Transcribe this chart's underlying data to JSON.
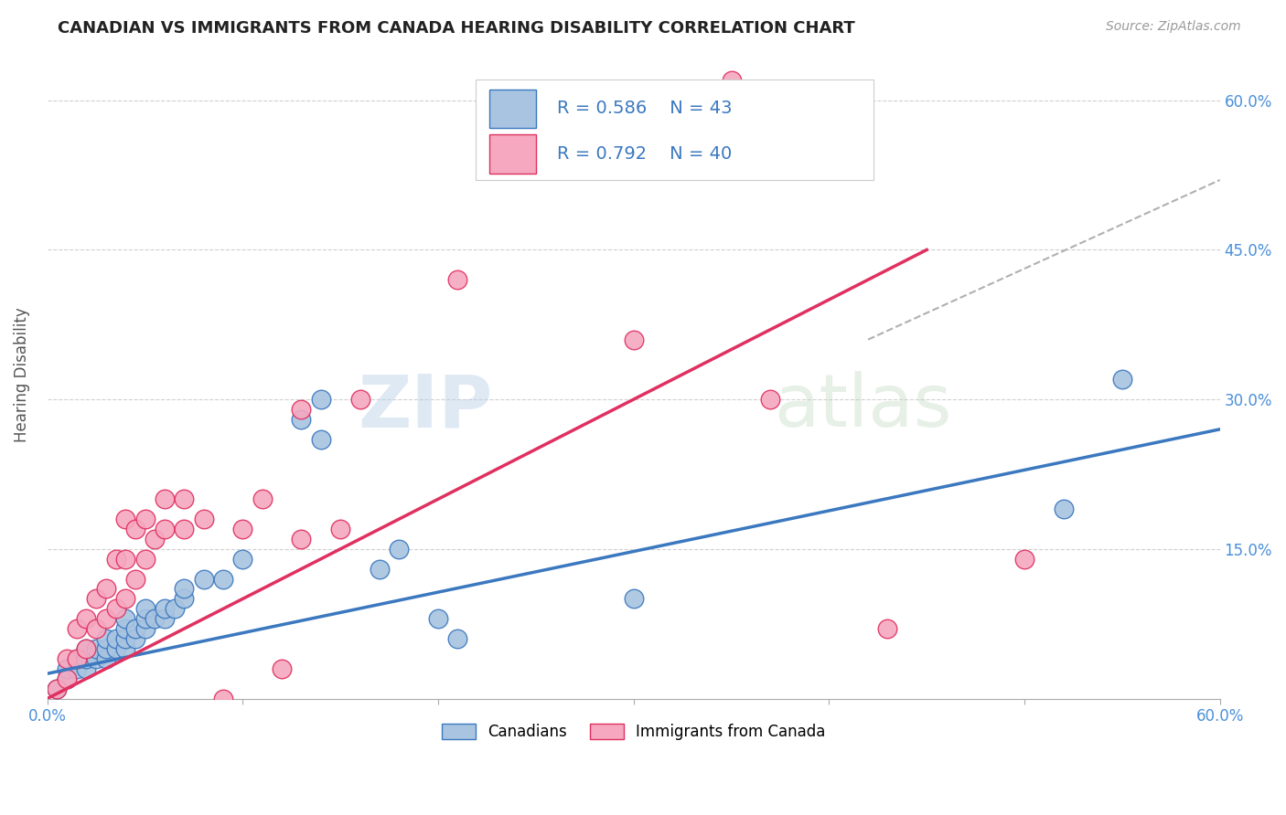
{
  "title": "CANADIAN VS IMMIGRANTS FROM CANADA HEARING DISABILITY CORRELATION CHART",
  "source": "Source: ZipAtlas.com",
  "ylabel": "Hearing Disability",
  "xlim": [
    0.0,
    0.6
  ],
  "ylim": [
    0.0,
    0.65
  ],
  "canadians_R": 0.586,
  "canadians_N": 43,
  "immigrants_R": 0.792,
  "immigrants_N": 40,
  "canadians_color": "#a8c4e0",
  "canadians_line_color": "#3b78bf",
  "immigrants_color": "#f5a8c0",
  "immigrants_line_color": "#e03060",
  "legend_label_canadians": "Canadians",
  "legend_label_immigrants": "Immigrants from Canada",
  "watermark_zip": "ZIP",
  "watermark_atlas": "atlas",
  "canadians_x": [
    0.005,
    0.01,
    0.01,
    0.015,
    0.015,
    0.02,
    0.02,
    0.02,
    0.025,
    0.025,
    0.03,
    0.03,
    0.03,
    0.035,
    0.035,
    0.04,
    0.04,
    0.04,
    0.04,
    0.045,
    0.045,
    0.05,
    0.05,
    0.05,
    0.055,
    0.06,
    0.06,
    0.065,
    0.07,
    0.07,
    0.08,
    0.09,
    0.1,
    0.13,
    0.14,
    0.14,
    0.17,
    0.18,
    0.2,
    0.21,
    0.3,
    0.52,
    0.55
  ],
  "canadians_y": [
    0.01,
    0.02,
    0.03,
    0.03,
    0.04,
    0.03,
    0.04,
    0.05,
    0.04,
    0.05,
    0.04,
    0.05,
    0.06,
    0.05,
    0.06,
    0.05,
    0.06,
    0.07,
    0.08,
    0.06,
    0.07,
    0.07,
    0.08,
    0.09,
    0.08,
    0.08,
    0.09,
    0.09,
    0.1,
    0.11,
    0.12,
    0.12,
    0.14,
    0.28,
    0.26,
    0.3,
    0.13,
    0.15,
    0.08,
    0.06,
    0.1,
    0.19,
    0.32
  ],
  "immigrants_x": [
    0.005,
    0.01,
    0.01,
    0.015,
    0.015,
    0.02,
    0.02,
    0.025,
    0.025,
    0.03,
    0.03,
    0.035,
    0.035,
    0.04,
    0.04,
    0.04,
    0.045,
    0.045,
    0.05,
    0.05,
    0.055,
    0.06,
    0.06,
    0.07,
    0.07,
    0.08,
    0.09,
    0.1,
    0.11,
    0.12,
    0.13,
    0.13,
    0.15,
    0.16,
    0.21,
    0.3,
    0.35,
    0.37,
    0.43,
    0.5
  ],
  "immigrants_y": [
    0.01,
    0.02,
    0.04,
    0.04,
    0.07,
    0.05,
    0.08,
    0.07,
    0.1,
    0.08,
    0.11,
    0.09,
    0.14,
    0.1,
    0.14,
    0.18,
    0.12,
    0.17,
    0.14,
    0.18,
    0.16,
    0.17,
    0.2,
    0.17,
    0.2,
    0.18,
    0.0,
    0.17,
    0.2,
    0.03,
    0.16,
    0.29,
    0.17,
    0.3,
    0.42,
    0.36,
    0.62,
    0.3,
    0.07,
    0.14
  ],
  "can_line_x0": 0.0,
  "can_line_y0": 0.025,
  "can_line_x1": 0.6,
  "can_line_y1": 0.27,
  "imm_line_x0": 0.0,
  "imm_line_y0": 0.0,
  "imm_line_x1": 0.45,
  "imm_line_y1": 0.45,
  "dash_line_x0": 0.42,
  "dash_line_y0": 0.36,
  "dash_line_x1": 0.6,
  "dash_line_y1": 0.52
}
